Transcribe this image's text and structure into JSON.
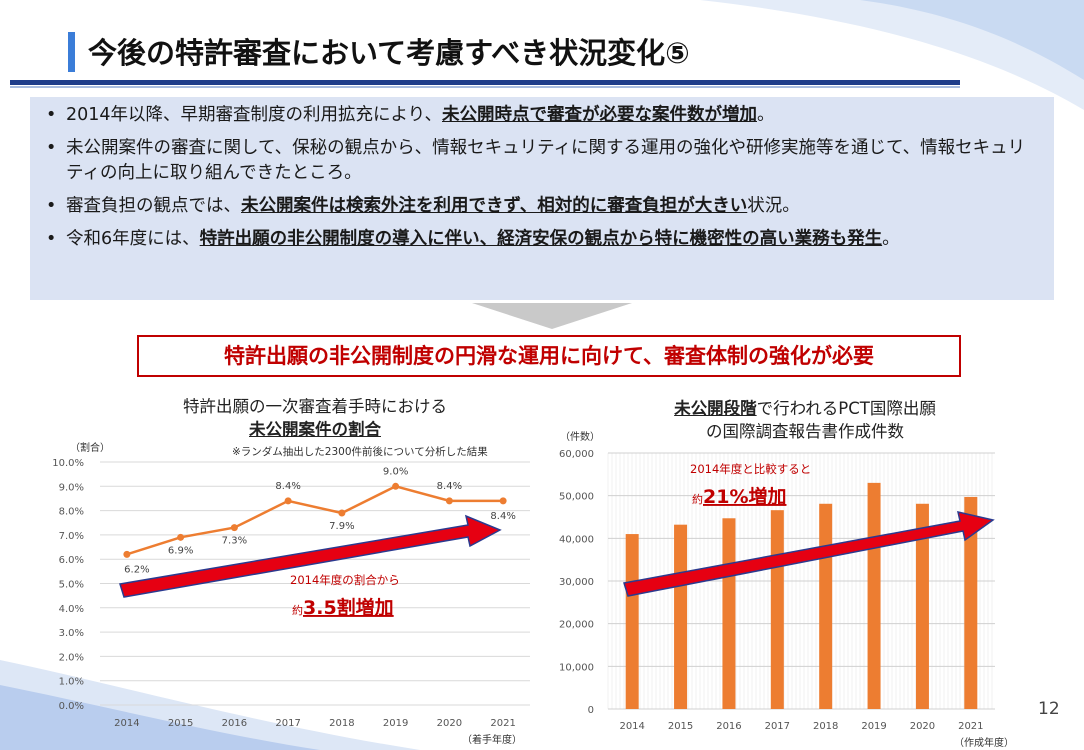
{
  "header": {
    "title": "今後の特許審査において考慮すべき状況変化⑤"
  },
  "bullets": [
    {
      "pre": "2014年以降、早期審査制度の利用拡充により、",
      "em": "未公開時点で審査が必要な案件数が増加",
      "post": "。"
    },
    {
      "pre": "未公開案件の審査に関して、保秘の観点から、情報セキュリティに関する運用の強化や研修実施等を通じて、情報セキュリティの向上に取り組んできたところ。",
      "em": "",
      "post": ""
    },
    {
      "pre": "審査負担の観点では、",
      "em": "未公開案件は検索外注を利用できず、相対的に審査負担が大きい",
      "post": "状況。"
    },
    {
      "pre": "令和6年度には、",
      "em": "特許出願の非公開制度の導入に伴い、経済安保の観点から特に機密性の高い業務も発生",
      "post": "。"
    }
  ],
  "conclusion": "特許出願の非公開制度の円滑な運用に向けて、審査体制の強化が必要",
  "left_chart": {
    "title_line1": "特許出願の一次審査着手時における",
    "title_line2": "未公開案件の割合"
  },
  "right_chart": {
    "title_line1_em": "未公開段階",
    "title_line1_rest": "で行われるPCT国際出願",
    "title_line2": "の国際調査報告書作成件数"
  },
  "page_number": "12",
  "colors": {
    "accent_blue": "#1f3d8a",
    "title_bar": "#3b7dd8",
    "panel": "#dbe3f3",
    "red": "#c00000",
    "orange": "#ed7d31"
  },
  "chart_data": [
    {
      "type": "line",
      "ylabel": "（割合）",
      "xlabel": "（着手年度）",
      "note": "※ランダム抽出した2300件前後について分析した結果",
      "categories": [
        "2014",
        "2015",
        "2016",
        "2017",
        "2018",
        "2019",
        "2020",
        "2021"
      ],
      "values": [
        6.2,
        6.9,
        7.3,
        8.4,
        7.9,
        9.0,
        8.4,
        8.4
      ],
      "data_labels": [
        "6.2%",
        "6.9%",
        "7.3%",
        "8.4%",
        "7.9%",
        "9.0%",
        "8.4%",
        "8.4%"
      ],
      "ylim": [
        0,
        10
      ],
      "yticks": [
        "0.0%",
        "1.0%",
        "2.0%",
        "3.0%",
        "4.0%",
        "5.0%",
        "6.0%",
        "7.0%",
        "8.0%",
        "9.0%",
        "10.0%"
      ],
      "annotation_line1": "2014年度の割合から",
      "annotation_prefix": "約",
      "annotation_big": "3.5割増加",
      "grid": true,
      "color": "#ed7d31"
    },
    {
      "type": "bar",
      "ylabel": "（件数）",
      "xlabel": "（作成年度）",
      "categories": [
        "2014",
        "2015",
        "2016",
        "2017",
        "2018",
        "2019",
        "2020",
        "2021"
      ],
      "values": [
        41000,
        43200,
        44700,
        46600,
        48100,
        53000,
        48100,
        49700
      ],
      "ylim": [
        0,
        60000
      ],
      "yticks": [
        "0",
        "10,000",
        "20,000",
        "30,000",
        "40,000",
        "50,000",
        "60,000"
      ],
      "annotation_line1": "2014年度と比較すると",
      "annotation_prefix": "約",
      "annotation_big": "21%増加",
      "grid": true,
      "color": "#ed7d31"
    }
  ]
}
